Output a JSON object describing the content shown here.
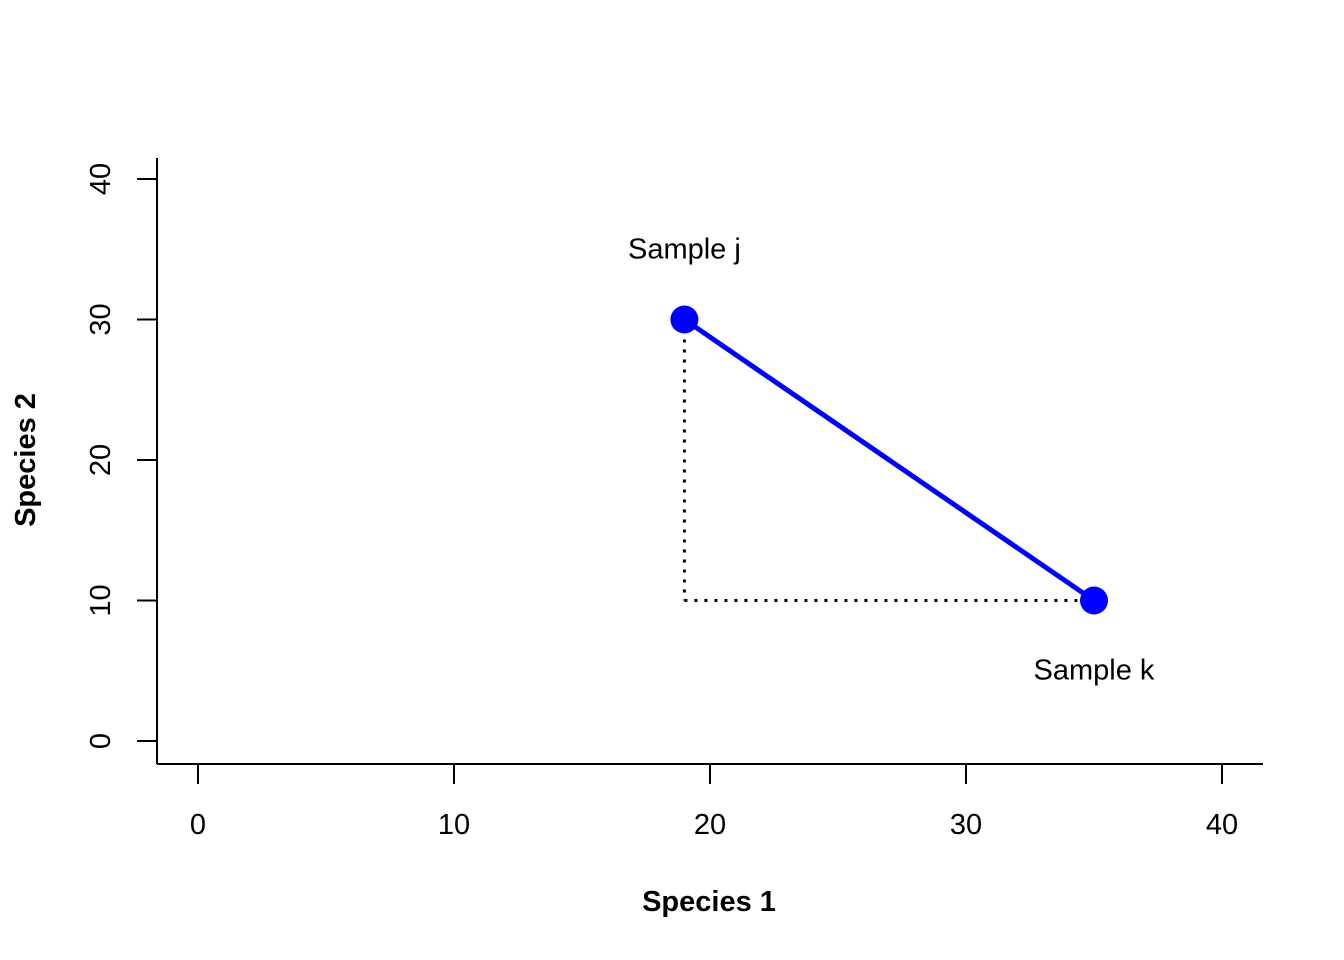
{
  "chart_data": {
    "type": "scatter",
    "xlabel": "Species 1",
    "ylabel": "Species 2",
    "xlim": [
      0,
      40
    ],
    "ylim": [
      0,
      40
    ],
    "x_ticks": [
      0,
      10,
      20,
      30,
      40
    ],
    "y_ticks": [
      0,
      10,
      20,
      30,
      40
    ],
    "x_tick_labels": [
      "0",
      "10",
      "20",
      "30",
      "40"
    ],
    "y_tick_labels": [
      "0",
      "10",
      "20",
      "30",
      "40"
    ],
    "grid": false,
    "points": [
      {
        "label": "Sample j",
        "x": 19,
        "y": 30
      },
      {
        "label": "Sample k",
        "x": 35,
        "y": 10
      }
    ],
    "lines": [
      {
        "style": "solid",
        "color": "#0000ff",
        "from": [
          19,
          30
        ],
        "to": [
          35,
          10
        ]
      },
      {
        "style": "dotted",
        "color": "#000000",
        "from": [
          19,
          30
        ],
        "to": [
          19,
          10
        ]
      },
      {
        "style": "dotted",
        "color": "#000000",
        "from": [
          19,
          10
        ],
        "to": [
          35,
          10
        ]
      }
    ],
    "point_color": "#0000ff"
  }
}
